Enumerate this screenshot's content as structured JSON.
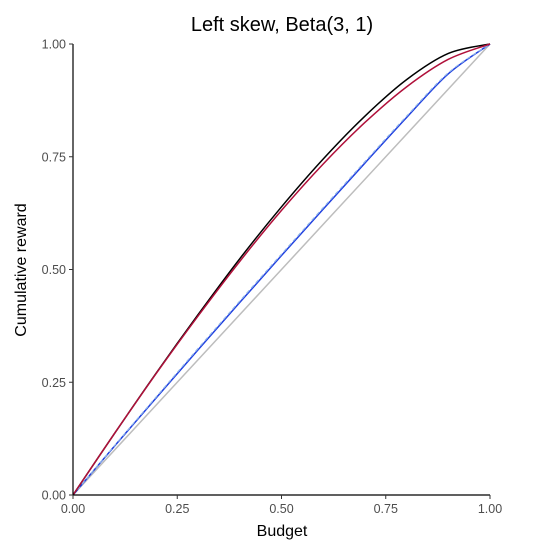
{
  "chart_data": {
    "type": "line",
    "title": "Left skew, Beta(3, 1)",
    "xlabel": "Budget",
    "ylabel": "Cumulative reward",
    "xlim": [
      0,
      1
    ],
    "ylim": [
      0,
      1
    ],
    "x_ticks": [
      "0.00",
      "0.25",
      "0.50",
      "0.75",
      "1.00"
    ],
    "y_ticks": [
      "0.00",
      "0.25",
      "0.50",
      "0.75",
      "1.00"
    ],
    "grid": false,
    "legend": "none",
    "series": [
      {
        "color": "#bdbdbd",
        "dash": "solid",
        "x": [
          0,
          0.25,
          0.5,
          0.75,
          1.0
        ],
        "y": [
          0,
          0.25,
          0.5,
          0.75,
          1.0
        ]
      },
      {
        "color": "#1f3fe0",
        "dash": "solid",
        "x": [
          0,
          0.1,
          0.2,
          0.3,
          0.4,
          0.5,
          0.6,
          0.7,
          0.8,
          0.9,
          1.0
        ],
        "y": [
          0,
          0.109,
          0.216,
          0.322,
          0.427,
          0.531,
          0.634,
          0.736,
          0.837,
          0.934,
          1.0
        ]
      },
      {
        "color": "#8fb4e8",
        "dash": "dashed",
        "x": [
          0,
          0.1,
          0.2,
          0.3,
          0.4,
          0.5,
          0.6,
          0.7,
          0.8,
          0.9,
          1.0
        ],
        "y": [
          0,
          0.11,
          0.218,
          0.325,
          0.43,
          0.534,
          0.637,
          0.739,
          0.84,
          0.936,
          1.0
        ]
      },
      {
        "color": "#000000",
        "dash": "solid",
        "x": [
          0,
          0.1,
          0.2,
          0.3,
          0.4,
          0.5,
          0.6,
          0.7,
          0.8,
          0.9,
          1.0
        ],
        "y": [
          0,
          0.137,
          0.271,
          0.4,
          0.524,
          0.639,
          0.745,
          0.84,
          0.921,
          0.979,
          1.0
        ]
      },
      {
        "color": "#b0103a",
        "dash": "solid",
        "x": [
          0,
          0.1,
          0.2,
          0.3,
          0.4,
          0.5,
          0.6,
          0.7,
          0.8,
          0.9,
          1.0
        ],
        "y": [
          0,
          0.137,
          0.27,
          0.397,
          0.518,
          0.631,
          0.734,
          0.826,
          0.905,
          0.966,
          1.0
        ]
      }
    ]
  }
}
